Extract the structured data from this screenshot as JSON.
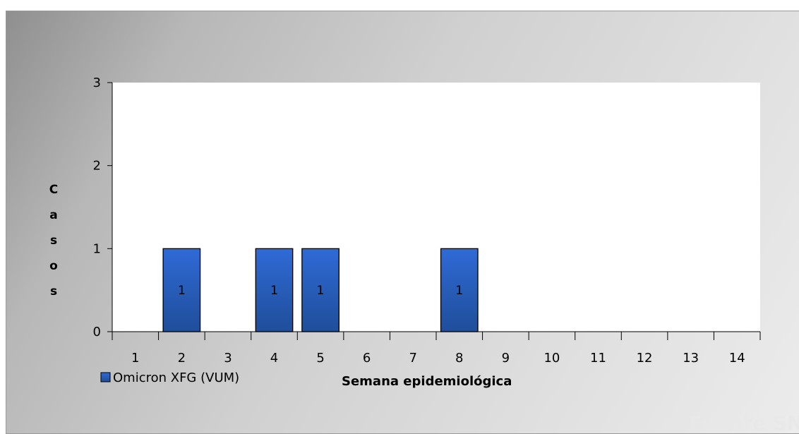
{
  "chart_data": {
    "type": "bar",
    "categories": [
      "1",
      "2",
      "3",
      "4",
      "5",
      "6",
      "7",
      "8",
      "9",
      "10",
      "11",
      "12",
      "13",
      "14"
    ],
    "series": [
      {
        "name": "Omicron XFG (VUM)",
        "values": [
          0,
          1,
          0,
          1,
          1,
          0,
          0,
          1,
          0,
          0,
          0,
          0,
          0,
          0
        ]
      }
    ],
    "data_labels": [
      "",
      "1",
      "",
      "1",
      "1",
      "",
      "",
      "1",
      "",
      "",
      "",
      "",
      "",
      ""
    ],
    "xlabel": "Semana epidemiológica",
    "ylabel": "Casos",
    "ylim": [
      0,
      3
    ],
    "yticks": [
      0,
      1,
      2,
      3
    ],
    "grid": false,
    "legend_position": "bottom-left",
    "source": "Fuente SNVS2",
    "colors": {
      "bar_top": "#2f6ad6",
      "bar_bottom": "#1f4e9a",
      "bar_edge": "#000000",
      "plot_bg": "#ffffff"
    }
  }
}
